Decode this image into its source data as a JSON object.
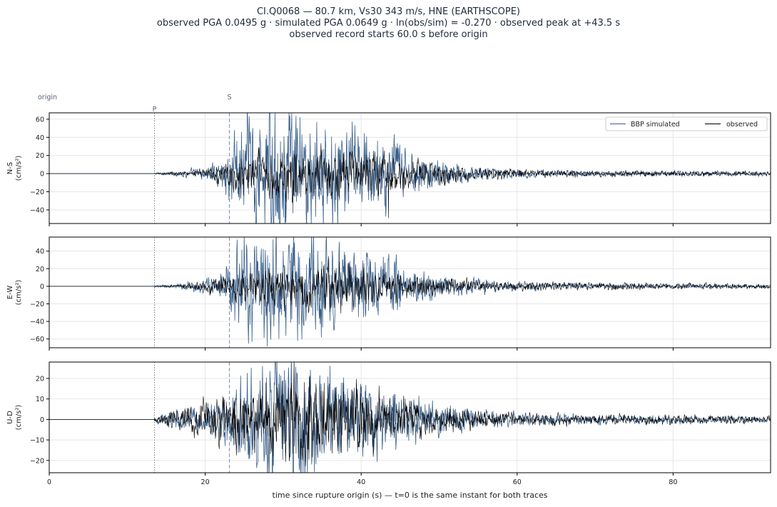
{
  "header": {
    "line1": "CI.Q0068  —  80.7 km, Vs30 343 m/s, HNE (EARTHSCOPE)",
    "line2": "observed PGA 0.0495 g   ·   simulated PGA 0.0649 g   ·   ln(obs/sim) = -0.270   ·   observed peak at +43.5 s",
    "line3": "observed record starts 60.0 s before origin"
  },
  "colors": {
    "observed": "#000000",
    "simulated": "#3a5f8a",
    "p_marker": "#777777",
    "s_marker": "#7a8fb5",
    "grid": "#e6e6e6"
  },
  "chart_data": {
    "type": "line",
    "xlabel": "time since rupture origin (s)   —   t=0 is the same instant for both traces",
    "xlim": [
      0,
      92.5
    ],
    "xticks": [
      0,
      20,
      40,
      60,
      80
    ],
    "grid": true,
    "legend": {
      "placement": "top-right",
      "entries": [
        "BBP simulated",
        "observed"
      ]
    },
    "markers": [
      {
        "label": "origin",
        "t": 0
      },
      {
        "label": "P",
        "t": 13.5
      },
      {
        "label": "S",
        "t": 23.1
      }
    ],
    "panels": [
      {
        "label": "N-S",
        "units": "(cm/s²)",
        "ylim": [
          -55,
          67
        ],
        "yticks": [
          -40,
          -20,
          0,
          20,
          40,
          60
        ],
        "observed_peak": {
          "t": 43.5,
          "value": -49
        },
        "observed_envelope": [
          [
            13.5,
            0.4
          ],
          [
            17,
            1.5
          ],
          [
            20,
            3
          ],
          [
            23,
            10
          ],
          [
            25,
            14
          ],
          [
            28,
            15
          ],
          [
            31,
            18
          ],
          [
            35,
            17
          ],
          [
            38,
            16
          ],
          [
            41,
            14
          ],
          [
            43.5,
            13
          ],
          [
            46,
            10
          ],
          [
            50,
            7
          ],
          [
            55,
            4
          ],
          [
            60,
            3
          ],
          [
            70,
            2
          ],
          [
            92.5,
            1.5
          ]
        ],
        "simulated_envelope": [
          [
            13.5,
            0.6
          ],
          [
            16,
            1.5
          ],
          [
            20,
            4
          ],
          [
            22,
            8
          ],
          [
            23.1,
            20
          ],
          [
            24,
            38
          ],
          [
            26,
            44
          ],
          [
            28,
            45
          ],
          [
            30,
            42
          ],
          [
            33,
            40
          ],
          [
            36,
            36
          ],
          [
            40,
            30
          ],
          [
            43,
            26
          ],
          [
            46,
            16
          ],
          [
            50,
            9
          ],
          [
            55,
            5
          ],
          [
            60,
            3
          ],
          [
            70,
            2
          ],
          [
            92.5,
            1.5
          ]
        ]
      },
      {
        "label": "E-W",
        "units": "(cm/s²)",
        "ylim": [
          -70,
          56
        ],
        "yticks": [
          -60,
          -40,
          -20,
          0,
          20,
          40
        ],
        "observed_envelope": [
          [
            13.5,
            0.4
          ],
          [
            17,
            1.5
          ],
          [
            20,
            4
          ],
          [
            23,
            9
          ],
          [
            26,
            12
          ],
          [
            30,
            15
          ],
          [
            34,
            18
          ],
          [
            38,
            15
          ],
          [
            41,
            12
          ],
          [
            45,
            9
          ],
          [
            50,
            7
          ],
          [
            55,
            4
          ],
          [
            60,
            3
          ],
          [
            70,
            2.5
          ],
          [
            92.5,
            1.5
          ]
        ],
        "simulated_envelope": [
          [
            13.5,
            0.5
          ],
          [
            16,
            1.5
          ],
          [
            20,
            5
          ],
          [
            22,
            10
          ],
          [
            23.1,
            18
          ],
          [
            24,
            30
          ],
          [
            26,
            40
          ],
          [
            28,
            42
          ],
          [
            30,
            40
          ],
          [
            33,
            38
          ],
          [
            36,
            33
          ],
          [
            40,
            25
          ],
          [
            43,
            22
          ],
          [
            46,
            14
          ],
          [
            50,
            8
          ],
          [
            55,
            5
          ],
          [
            60,
            3
          ],
          [
            70,
            2
          ],
          [
            92.5,
            1.5
          ]
        ]
      },
      {
        "label": "U-D",
        "units": "(cm/s²)",
        "ylim": [
          -26,
          28
        ],
        "yticks": [
          -20,
          -10,
          0,
          10,
          20
        ],
        "observed_envelope": [
          [
            13.5,
            0.8
          ],
          [
            15,
            2
          ],
          [
            17,
            4
          ],
          [
            20,
            6
          ],
          [
            23,
            9
          ],
          [
            26,
            11
          ],
          [
            29,
            13
          ],
          [
            32,
            14
          ],
          [
            35,
            12
          ],
          [
            38,
            11
          ],
          [
            41,
            10
          ],
          [
            44,
            7
          ],
          [
            48,
            5
          ],
          [
            52,
            4
          ],
          [
            56,
            2.5
          ],
          [
            60,
            2
          ],
          [
            70,
            1.6
          ],
          [
            92.5,
            1.2
          ]
        ],
        "simulated_envelope": [
          [
            13.5,
            1
          ],
          [
            15,
            2
          ],
          [
            17,
            3
          ],
          [
            20,
            5
          ],
          [
            22,
            7
          ],
          [
            23.1,
            10
          ],
          [
            25,
            14
          ],
          [
            28,
            18
          ],
          [
            30,
            19
          ],
          [
            33,
            17
          ],
          [
            36,
            15
          ],
          [
            40,
            12
          ],
          [
            43,
            10
          ],
          [
            46,
            7
          ],
          [
            50,
            5
          ],
          [
            55,
            3
          ],
          [
            60,
            2
          ],
          [
            70,
            1.5
          ],
          [
            92.5,
            1
          ]
        ]
      }
    ]
  }
}
